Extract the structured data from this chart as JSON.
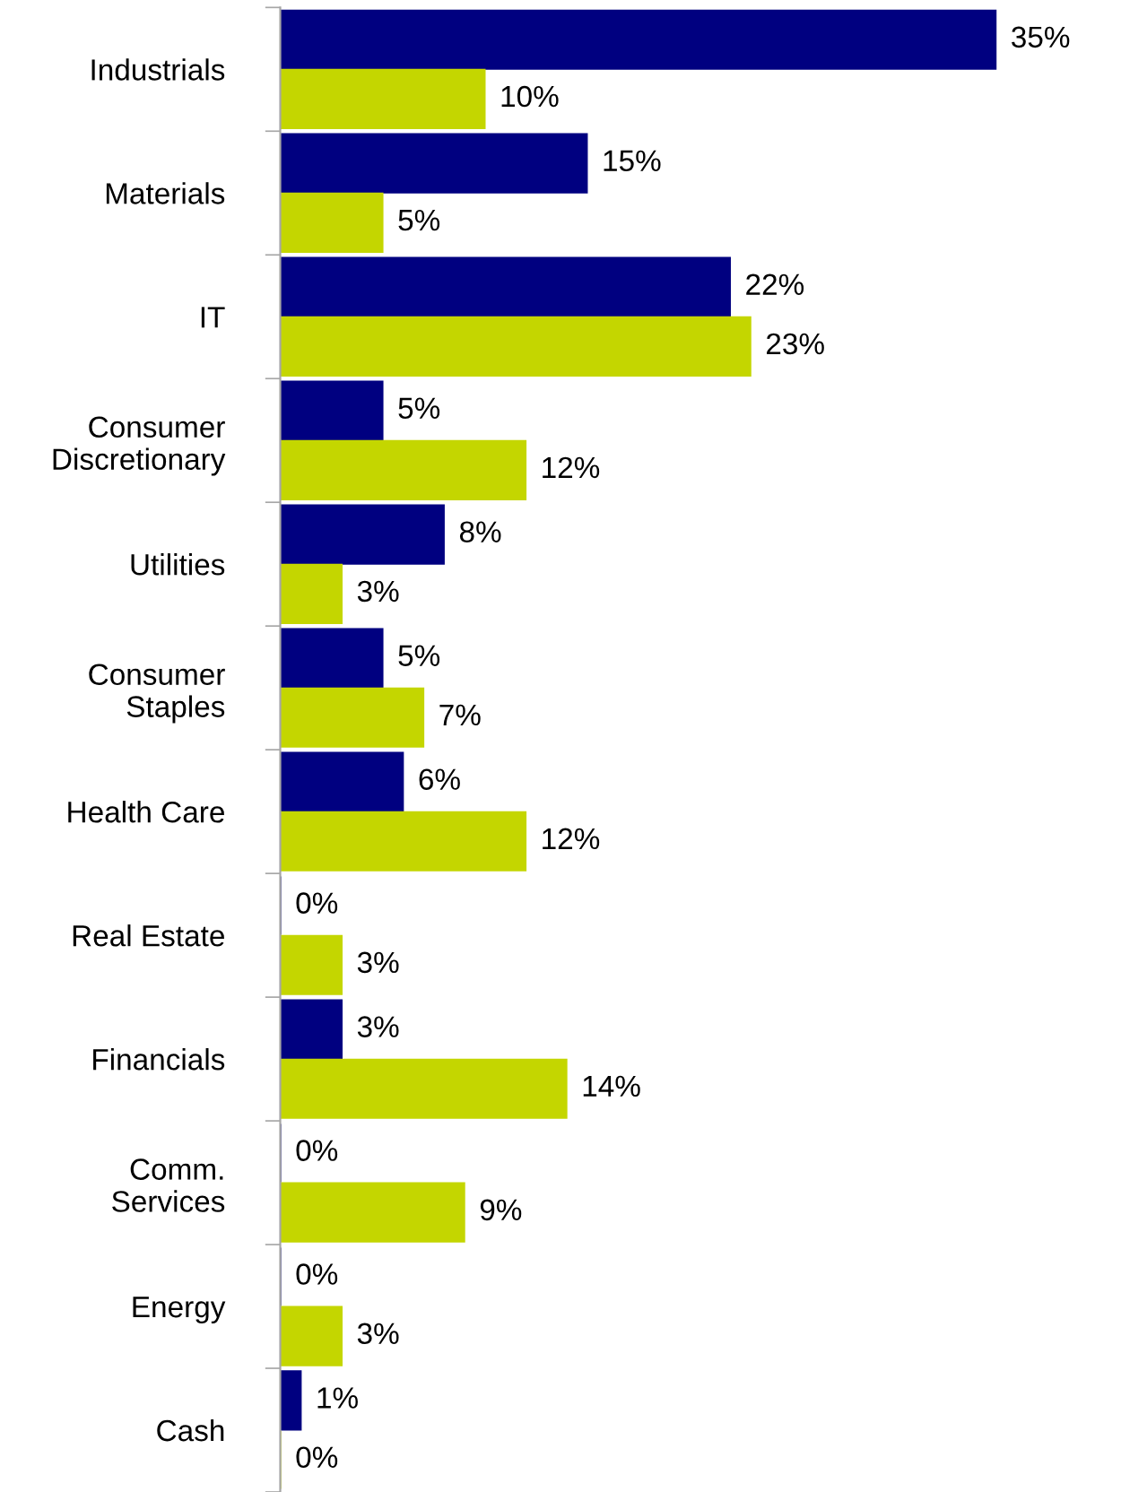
{
  "chart_data": {
    "type": "bar",
    "orientation": "horizontal",
    "categories": [
      "Industrials",
      "Materials",
      "IT",
      "Consumer\nDiscretionary",
      "Utilities",
      "Consumer\nStaples",
      "Health Care",
      "Real Estate",
      "Financials",
      "Comm.\nServices",
      "Energy",
      "Cash"
    ],
    "series": [
      {
        "color": "#000080",
        "values": [
          35,
          15,
          22,
          5,
          8,
          5,
          6,
          0,
          3,
          0,
          0,
          1
        ],
        "value_labels": [
          "35%",
          "15%",
          "22%",
          "5%",
          "8%",
          "5%",
          "6%",
          "0%",
          "3%",
          "0%",
          "0%",
          "1%"
        ]
      },
      {
        "color": "#c4d600",
        "values": [
          10,
          5,
          23,
          12,
          3,
          7,
          12,
          3,
          14,
          9,
          3,
          0
        ],
        "value_labels": [
          "10%",
          "5%",
          "23%",
          "12%",
          "3%",
          "7%",
          "12%",
          "3%",
          "14%",
          "9%",
          "3%",
          "0%"
        ]
      }
    ]
  }
}
